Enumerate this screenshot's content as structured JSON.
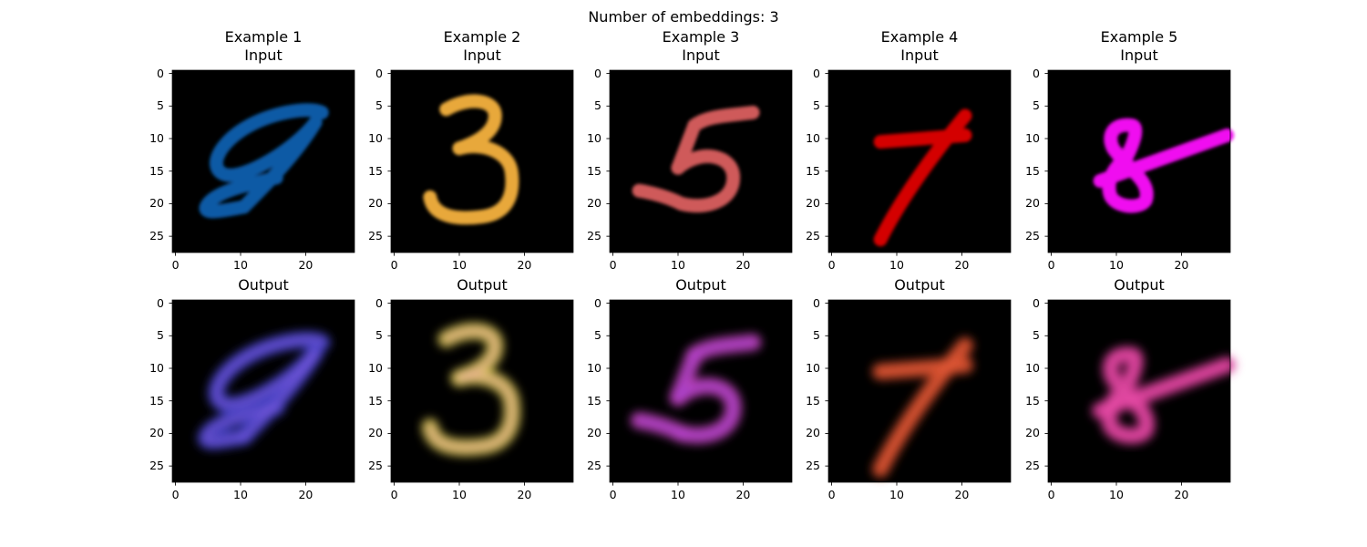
{
  "figure": {
    "suptitle": "Number of embeddings: 3"
  },
  "axes": {
    "xticks": [
      "0",
      "10",
      "20"
    ],
    "yticks": [
      "0",
      "5",
      "10",
      "15",
      "20",
      "25"
    ]
  },
  "examples": [
    {
      "example_label": "Example 1",
      "input_label": "Input",
      "output_label": "Output",
      "digit": "9",
      "input_color": "#0b5aa5",
      "output_color": "#4040c8",
      "output_accent": "#7a5ad8"
    },
    {
      "example_label": "Example 2",
      "input_label": "Input",
      "output_label": "Output",
      "digit": "3",
      "input_color": "#e8a83a",
      "output_color": "#d8c84a",
      "output_accent": "#e8a8a0"
    },
    {
      "example_label": "Example 3",
      "input_label": "Input",
      "output_label": "Output",
      "digit": "5",
      "input_color": "#cf5a5a",
      "output_color": "#c040b8",
      "output_accent": "#a040d0"
    },
    {
      "example_label": "Example 4",
      "input_label": "Input",
      "output_label": "Output",
      "digit": "7",
      "input_color": "#d40000",
      "output_color": "#d04a28",
      "output_accent": "#e05a3a"
    },
    {
      "example_label": "Example 5",
      "input_label": "Input",
      "output_label": "Output",
      "digit": "8",
      "input_color": "#f010f0",
      "output_color": "#d83a98",
      "output_accent": "#e850a8"
    }
  ]
}
